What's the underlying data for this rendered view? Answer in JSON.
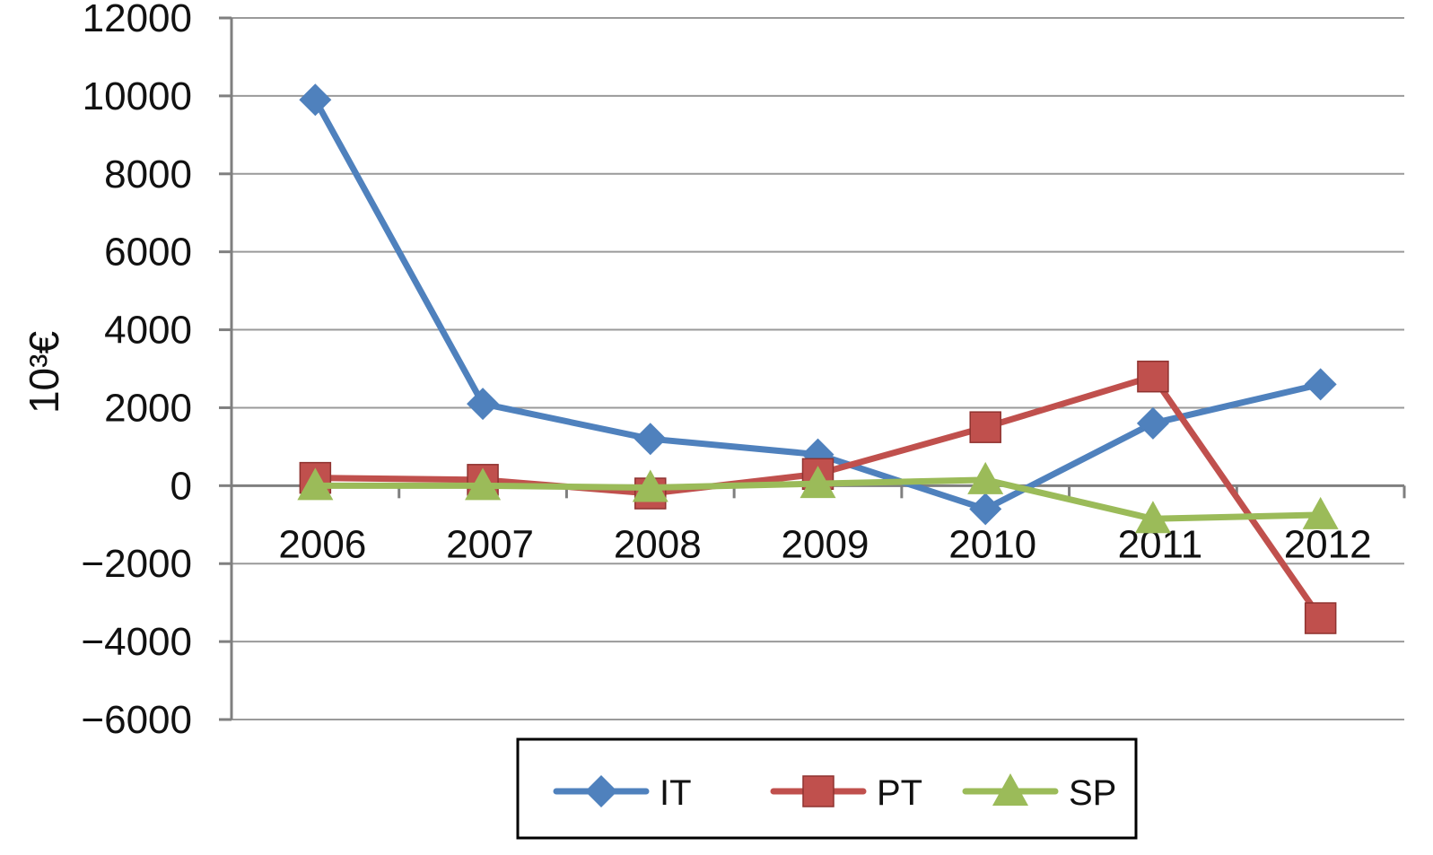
{
  "chart_data": {
    "type": "line",
    "title": "",
    "xlabel": "",
    "ylabel": "10³€",
    "ylim": [
      -6000,
      12000
    ],
    "yticks": [
      12000,
      10000,
      8000,
      6000,
      4000,
      2000,
      0,
      -2000,
      -4000,
      -6000
    ],
    "ytick_labels": [
      "12000",
      "10000",
      "8000",
      "6000",
      "4000",
      "2000",
      "0",
      "−2000",
      "−4000",
      "−6000"
    ],
    "categories": [
      "2006",
      "2007",
      "2008",
      "2009",
      "2010",
      "2011",
      "2012"
    ],
    "grid": "horizontal",
    "legend_position": "bottom",
    "series": [
      {
        "name": "IT",
        "marker": "diamond",
        "color": "#4F81BD",
        "values": [
          9900,
          2100,
          1200,
          800,
          -600,
          1600,
          2600
        ]
      },
      {
        "name": "PT",
        "marker": "square",
        "color": "#C0504D",
        "values": [
          200,
          150,
          -200,
          300,
          1500,
          2800,
          -3400
        ]
      },
      {
        "name": "SP",
        "marker": "triangle",
        "color": "#9BBB59",
        "values": [
          0,
          0,
          -50,
          50,
          150,
          -850,
          -750
        ]
      }
    ]
  }
}
